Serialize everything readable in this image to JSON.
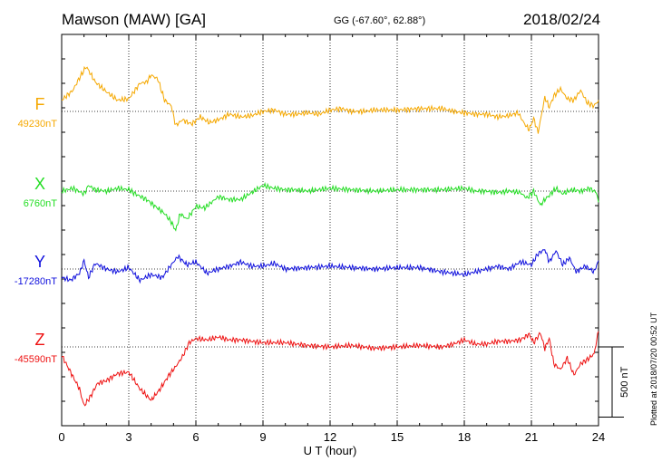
{
  "header": {
    "station": "Mawson (MAW)  [GA]",
    "coordinates": "GG (-67.60°,  62.88°)",
    "date": "2018/02/24"
  },
  "footer_note": "Plotted at 2018/07/20 00:52 UT",
  "chart_data": {
    "type": "line",
    "xlabel": "U T (hour)",
    "xlim": [
      0,
      24
    ],
    "xticks": [
      0,
      3,
      6,
      9,
      12,
      15,
      18,
      21,
      24
    ],
    "grid": true,
    "scale_bar": {
      "label": "500 nT",
      "value_nT": 500
    },
    "series": [
      {
        "name": "F",
        "baseline_label": "49230nT",
        "baseline_nT": 49230,
        "color": "#f5a800",
        "x": [
          0,
          0.5,
          0.8,
          1.1,
          1.5,
          2.0,
          2.5,
          3.0,
          3.5,
          3.8,
          4.0,
          4.3,
          4.6,
          4.9,
          5.1,
          5.4,
          5.8,
          6.2,
          6.6,
          7.0,
          7.5,
          8.0,
          8.5,
          9.0,
          9.5,
          10.0,
          10.5,
          11.0,
          11.5,
          12.0,
          12.5,
          13.0,
          13.5,
          14.0,
          15.0,
          16.0,
          17.0,
          17.5,
          18.0,
          18.5,
          19.0,
          19.5,
          20.0,
          20.4,
          20.7,
          20.9,
          21.1,
          21.3,
          21.6,
          21.8,
          22.0,
          22.3,
          22.6,
          22.9,
          23.2,
          23.5,
          23.8,
          24.0
        ],
        "y": [
          80,
          150,
          240,
          320,
          210,
          140,
          80,
          90,
          200,
          210,
          260,
          230,
          80,
          40,
          -100,
          -60,
          -90,
          -40,
          -80,
          -60,
          -20,
          -40,
          -30,
          0,
          10,
          -20,
          -20,
          -10,
          -20,
          10,
          20,
          0,
          0,
          10,
          10,
          20,
          20,
          0,
          -10,
          -20,
          -20,
          -40,
          -30,
          -10,
          -90,
          -130,
          -50,
          -150,
          100,
          30,
          110,
          160,
          90,
          80,
          150,
          60,
          40,
          80
        ]
      },
      {
        "name": "X",
        "baseline_label": "6760nT",
        "baseline_nT": 6760,
        "color": "#22dd22",
        "x": [
          0,
          0.5,
          1.0,
          1.2,
          1.5,
          2.0,
          2.5,
          3.0,
          3.3,
          3.8,
          4.2,
          4.6,
          4.9,
          5.1,
          5.3,
          5.6,
          6.0,
          6.4,
          7.0,
          7.5,
          8.0,
          8.5,
          9.0,
          9.5,
          10.0,
          10.5,
          11.0,
          12.0,
          13.0,
          14.0,
          15.0,
          16.0,
          17.0,
          18.0,
          18.5,
          19.0,
          19.5,
          20.0,
          20.5,
          20.8,
          21.1,
          21.4,
          21.6,
          21.8,
          22.1,
          22.4,
          22.8,
          23.2,
          23.6,
          23.9,
          24.0
        ],
        "y": [
          0,
          20,
          -20,
          40,
          10,
          0,
          20,
          10,
          -20,
          -60,
          -110,
          -160,
          -220,
          -280,
          -160,
          -200,
          -110,
          -120,
          -40,
          -60,
          -60,
          -10,
          40,
          20,
          10,
          10,
          0,
          20,
          10,
          0,
          10,
          10,
          10,
          20,
          0,
          0,
          -10,
          0,
          -10,
          -50,
          0,
          -100,
          -60,
          -30,
          20,
          -20,
          10,
          0,
          20,
          -10,
          -80
        ]
      },
      {
        "name": "Y",
        "baseline_label": "-17280nT",
        "baseline_nT": -17280,
        "color": "#1010dd",
        "x": [
          0,
          0.4,
          0.8,
          1.0,
          1.2,
          1.5,
          2.0,
          2.5,
          3.0,
          3.5,
          4.0,
          4.5,
          4.9,
          5.2,
          5.6,
          6.0,
          6.5,
          7.0,
          7.5,
          8.0,
          8.5,
          9.0,
          9.5,
          10.0,
          11.0,
          12.0,
          13.0,
          14.0,
          15.0,
          16.0,
          17.0,
          18.0,
          18.5,
          19.0,
          19.5,
          20.0,
          20.5,
          21.0,
          21.3,
          21.6,
          21.8,
          22.1,
          22.4,
          22.7,
          23.0,
          23.4,
          23.8,
          24.0
        ],
        "y": [
          -60,
          -80,
          -30,
          60,
          -60,
          40,
          0,
          -20,
          10,
          -80,
          -40,
          -60,
          30,
          90,
          30,
          50,
          -30,
          0,
          20,
          50,
          20,
          20,
          40,
          0,
          10,
          20,
          10,
          0,
          10,
          10,
          -20,
          -40,
          -20,
          0,
          20,
          0,
          50,
          30,
          110,
          140,
          50,
          130,
          30,
          80,
          -20,
          20,
          -20,
          60
        ]
      },
      {
        "name": "Z",
        "baseline_label": "-45590nT",
        "baseline_nT": -45590,
        "color": "#ee1111",
        "x": [
          0,
          0.4,
          0.8,
          1.0,
          1.3,
          1.6,
          2.0,
          2.5,
          3.0,
          3.5,
          4.0,
          4.4,
          4.8,
          5.1,
          5.4,
          5.7,
          6.0,
          6.5,
          7.0,
          7.5,
          8.0,
          9.0,
          10.0,
          11.0,
          12.0,
          13.0,
          14.0,
          15.0,
          16.0,
          17.0,
          17.5,
          18.0,
          18.5,
          19.0,
          19.5,
          20.0,
          20.5,
          20.9,
          21.1,
          21.4,
          21.6,
          21.8,
          22.0,
          22.3,
          22.6,
          22.9,
          23.2,
          23.5,
          23.8,
          24.0
        ],
        "y": [
          -60,
          -180,
          -300,
          -420,
          -350,
          -260,
          -240,
          -190,
          -180,
          -300,
          -380,
          -300,
          -200,
          -140,
          -70,
          30,
          60,
          50,
          70,
          50,
          50,
          30,
          30,
          10,
          0,
          10,
          -10,
          0,
          10,
          0,
          20,
          50,
          20,
          20,
          40,
          40,
          50,
          90,
          30,
          100,
          -10,
          60,
          -120,
          -160,
          -80,
          -200,
          -120,
          -90,
          -50,
          110
        ]
      }
    ]
  }
}
